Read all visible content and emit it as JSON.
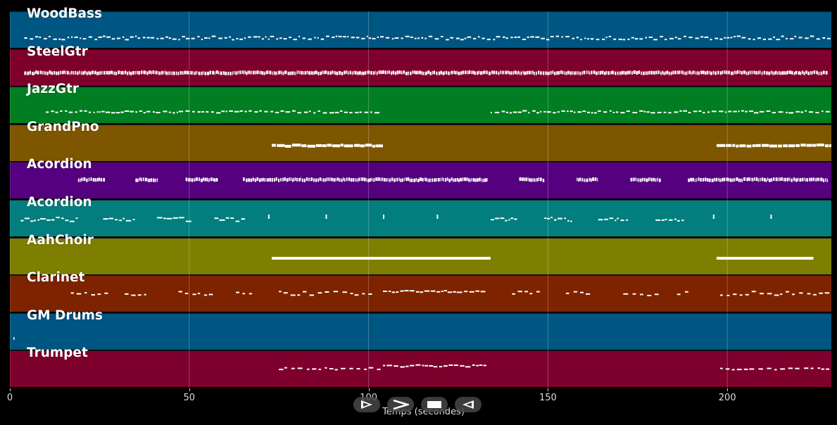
{
  "app": {
    "x_axis_label": "Temps (secondes)",
    "x_range": [
      0,
      229
    ],
    "x_ticks": [
      0,
      50,
      100,
      150,
      200
    ]
  },
  "tracks": [
    {
      "name": "WoodBass",
      "color": "#005682",
      "pattern": "dense_dashes"
    },
    {
      "name": "SteelGtr",
      "color": "#7e002d",
      "pattern": "dense_ticks"
    },
    {
      "name": "JazzGtr",
      "color": "#027e22",
      "pattern": "dense_dashes"
    },
    {
      "name": "GrandPno",
      "color": "#7e5600",
      "pattern": "block_chords"
    },
    {
      "name": "Acordion",
      "color": "#55007e",
      "pattern": "dense_ticks"
    },
    {
      "name": "Acordion",
      "color": "#027e7e",
      "pattern": "phrases"
    },
    {
      "name": "AahChoir",
      "color": "#7e7e00",
      "pattern": "long_line"
    },
    {
      "name": "Clarinet",
      "color": "#7e2300",
      "pattern": "melody"
    },
    {
      "name": "GM Drums",
      "color": "#005682",
      "pattern": "empty"
    },
    {
      "name": "Trumpet",
      "color": "#7e002d",
      "pattern": "melody"
    }
  ],
  "transport": {
    "icons": [
      "play-outline-icon",
      "fast-forward-icon",
      "stop-icon",
      "rewind-icon"
    ]
  }
}
